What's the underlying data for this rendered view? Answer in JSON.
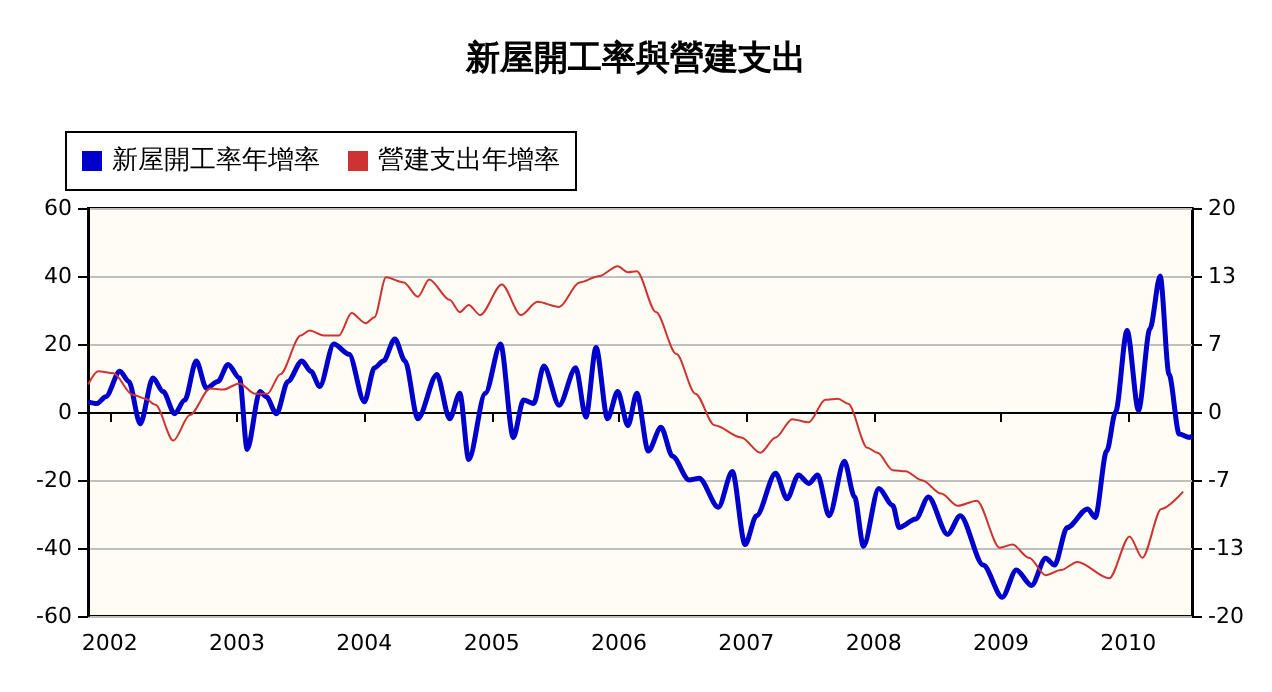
{
  "chart_data": {
    "type": "line",
    "title": "新屋開工率與營建支出",
    "xlim": [
      2001.83,
      2010.5
    ],
    "xticks": [
      2002,
      2003,
      2004,
      2005,
      2006,
      2007,
      2008,
      2009,
      2010
    ],
    "ylim": [
      -60,
      60
    ],
    "yticks": [
      -60,
      -40,
      -20,
      0,
      20,
      40,
      60
    ],
    "y2lim": [
      -20,
      20
    ],
    "y2ticks": [
      -20,
      {
        "value": -13.333,
        "label": "-13"
      },
      {
        "value": -6.667,
        "label": "-7"
      },
      0,
      {
        "value": 6.667,
        "label": "7"
      },
      {
        "value": 13.333,
        "label": "13"
      },
      20
    ],
    "grid": "y",
    "legend": "top left",
    "marker": "none",
    "series": [
      {
        "name": "新屋開工率年增率",
        "color": "#0000cc",
        "x": [
          2001.83,
          2001.9,
          2001.97,
          2002.08,
          2002.15,
          2002.24,
          2002.34,
          2002.42,
          2002.51,
          2002.59,
          2002.68,
          2002.76,
          2002.85,
          2002.93,
          2003.02,
          2003.08,
          2003.18,
          2003.23,
          2003.31,
          2003.4,
          2003.51,
          2003.58,
          2003.65,
          2003.76,
          2003.88,
          2004.0,
          2004.08,
          2004.15,
          2004.24,
          2004.32,
          2004.42,
          2004.57,
          2004.67,
          2004.75,
          2004.82,
          2004.95,
          2005.07,
          2005.17,
          2005.25,
          2005.33,
          2005.41,
          2005.53,
          2005.66,
          2005.74,
          2005.82,
          2005.91,
          2005.99,
          2006.07,
          2006.14,
          2006.23,
          2006.33,
          2006.42,
          2006.55,
          2006.63,
          2006.78,
          2006.89,
          2006.99,
          2007.08,
          2007.23,
          2007.32,
          2007.41,
          2007.49,
          2007.56,
          2007.65,
          2007.77,
          2007.85,
          2007.92,
          2008.04,
          2008.15,
          2008.2,
          2008.33,
          2008.43,
          2008.58,
          2008.68,
          2008.86,
          2009.01,
          2009.12,
          2009.24,
          2009.35,
          2009.42,
          2009.52,
          2009.68,
          2009.74,
          2009.83,
          2009.9,
          2009.99,
          2010.08,
          2010.17,
          2010.25,
          2010.32,
          2010.4,
          2010.48,
          2010.5
        ],
        "values": [
          3,
          2.5,
          4.5,
          12,
          9,
          -3.5,
          10,
          6,
          -0.5,
          3.5,
          15,
          7,
          9,
          14,
          10,
          -11,
          6,
          4.5,
          -0.5,
          9,
          15,
          12,
          7.5,
          20,
          17,
          3,
          13,
          15,
          21.5,
          15,
          -2,
          11,
          -2,
          5.5,
          -14,
          5.5,
          20,
          -7.5,
          3.5,
          2.5,
          13.5,
          2,
          13,
          -1.5,
          19,
          -2,
          6,
          -4,
          5.5,
          -11.5,
          -4.5,
          -13,
          -20,
          -19.5,
          -28,
          -17.5,
          -39,
          -30.5,
          -18,
          -25.5,
          -18.5,
          -21,
          -18.5,
          -30.5,
          -14.5,
          -25,
          -39.5,
          -22.5,
          -27.5,
          -34,
          -31.5,
          -25,
          -36,
          -30.5,
          -45,
          -54.5,
          -46.5,
          -51,
          -43,
          -45,
          -34,
          -28.5,
          -31,
          -11.5,
          0,
          24,
          0.5,
          24.5,
          40,
          11,
          -6.5,
          -7.5,
          -7
        ]
      },
      {
        "name": "營建支出年增率",
        "color": "#cc3333",
        "axis": "y2",
        "x": [
          2001.83,
          2001.91,
          2002.03,
          2002.18,
          2002.28,
          2002.36,
          2002.5,
          2002.63,
          2002.79,
          2002.89,
          2003.02,
          2003.14,
          2003.24,
          2003.34,
          2003.5,
          2003.57,
          2003.68,
          2003.8,
          2003.9,
          2004.01,
          2004.08,
          2004.17,
          2004.31,
          2004.42,
          2004.51,
          2004.67,
          2004.75,
          2004.82,
          2004.91,
          2005.08,
          2005.23,
          2005.36,
          2005.53,
          2005.69,
          2005.84,
          2005.99,
          2006.07,
          2006.14,
          2006.29,
          2006.45,
          2006.6,
          2006.75,
          2006.96,
          2007.11,
          2007.23,
          2007.36,
          2007.49,
          2007.62,
          2007.72,
          2007.8,
          2007.95,
          2008.03,
          2008.15,
          2008.25,
          2008.38,
          2008.53,
          2008.66,
          2008.81,
          2008.99,
          2009.09,
          2009.22,
          2009.35,
          2009.47,
          2009.6,
          2009.85,
          2010.01,
          2010.11,
          2010.26,
          2010.43
        ],
        "values": [
          2.7,
          4,
          3.8,
          1.7,
          1.3,
          0.7,
          -2.8,
          -0.3,
          2.3,
          2.2,
          2.8,
          1.8,
          1.8,
          3.7,
          7.5,
          8,
          7.5,
          7.5,
          9.7,
          8.7,
          9.3,
          13.2,
          12.7,
          11.3,
          13,
          11,
          9.8,
          10.5,
          9.5,
          12.5,
          9.5,
          10.8,
          10.3,
          12.7,
          13.3,
          14.3,
          13.7,
          13.8,
          9.8,
          5.7,
          1.8,
          -1.3,
          -2.5,
          -4,
          -2.5,
          -0.7,
          -1,
          1.2,
          1.3,
          0.8,
          -3.5,
          -4,
          -5.7,
          -5.8,
          -6.7,
          -8,
          -9.2,
          -8.7,
          -13.3,
          -13,
          -14.3,
          -16,
          -15.5,
          -14.7,
          -16.3,
          -12.2,
          -14.3,
          -9.5,
          -7.8
        ]
      }
    ]
  }
}
